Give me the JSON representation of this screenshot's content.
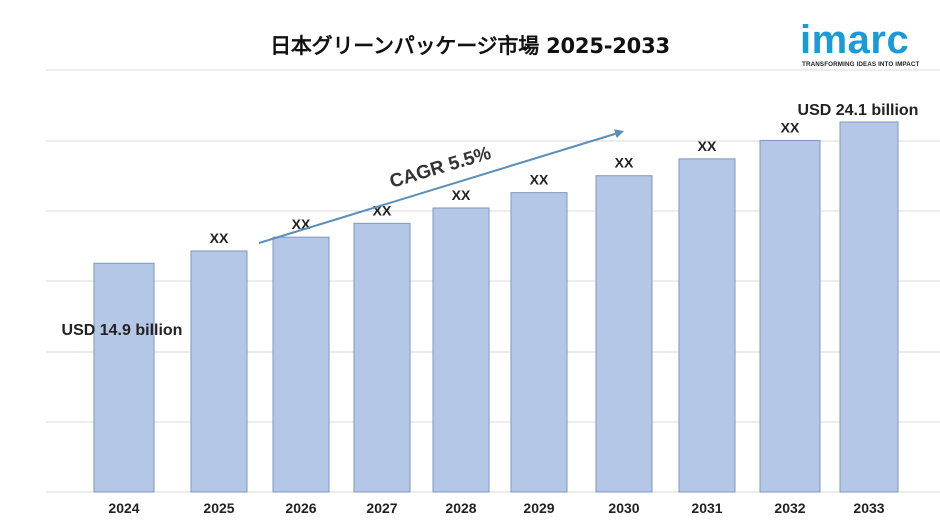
{
  "chart_data": {
    "type": "bar",
    "title": "日本グリーンパッケージ市場 2025-2033",
    "categories": [
      "2024",
      "2025",
      "2026",
      "2027",
      "2028",
      "2029",
      "2030",
      "2031",
      "2032",
      "2033"
    ],
    "values": [
      14.9,
      15.7,
      16.6,
      17.5,
      18.5,
      19.5,
      20.6,
      21.7,
      22.9,
      24.1
    ],
    "value_labels": [
      "USD 14.9 billion",
      "XX",
      "XX",
      "XX",
      "XX",
      "XX",
      "XX",
      "XX",
      "XX",
      "USD 24.1 billion"
    ],
    "annotation": "CAGR 5.5%",
    "ylim": [
      0,
      26
    ],
    "grid": true,
    "colors": {
      "bar": "#b4c7e7",
      "bar_border": "#7f97c2",
      "arrow": "#5b8fb8",
      "grid": "#d9d9d9"
    }
  },
  "logo": {
    "name": "imarc",
    "tagline": "TRANSFORMING IDEAS INTO IMPACT",
    "color": "#1a9bd7"
  }
}
